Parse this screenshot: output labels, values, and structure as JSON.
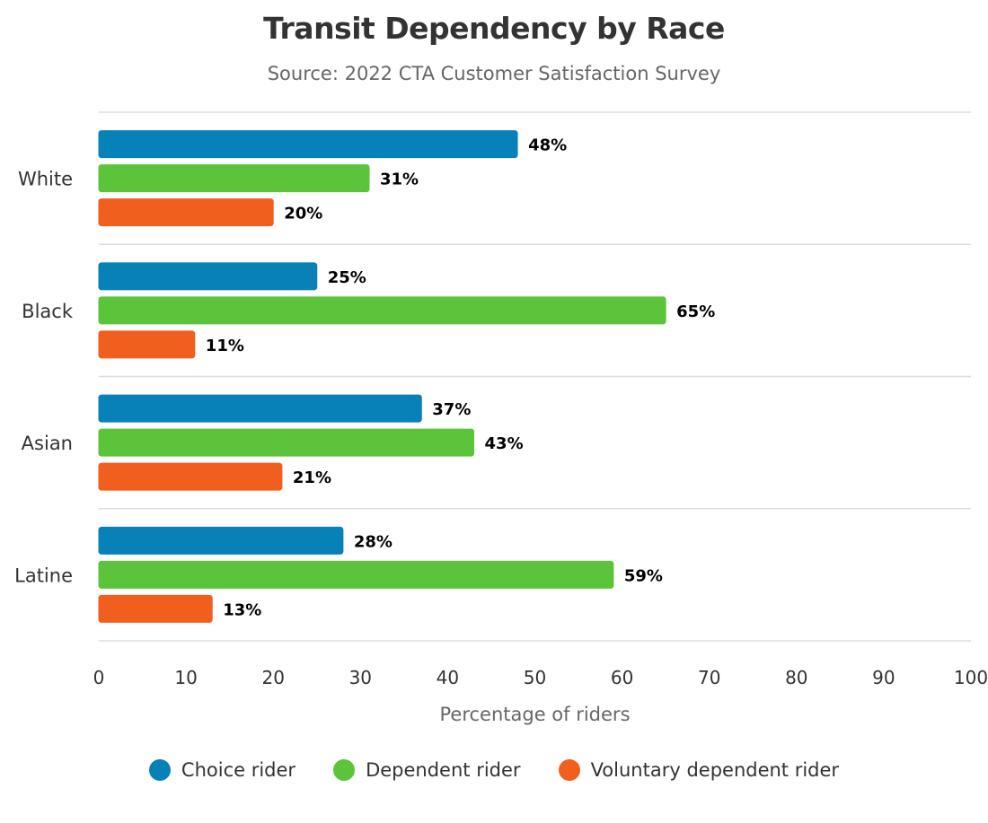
{
  "chart_data": {
    "type": "bar",
    "orientation": "horizontal",
    "title": "Transit Dependency by Race",
    "subtitle": "Source: 2022 CTA Customer Satisfaction Survey",
    "xlabel": "Percentage of riders",
    "ylabel": "",
    "xlim": [
      0,
      100
    ],
    "xticks": [
      "0",
      "10",
      "20",
      "30",
      "40",
      "50",
      "60",
      "70",
      "80",
      "90",
      "100"
    ],
    "categories": [
      "White",
      "Black",
      "Asian",
      "Latine"
    ],
    "series": [
      {
        "name": "Choice rider",
        "color": "#0880b8",
        "values": [
          48,
          25,
          37,
          28
        ],
        "labels": [
          "48%",
          "25%",
          "37%",
          "28%"
        ]
      },
      {
        "name": "Dependent rider",
        "color": "#5cc43a",
        "values": [
          31,
          65,
          43,
          59
        ],
        "labels": [
          "31%",
          "65%",
          "43%",
          "59%"
        ]
      },
      {
        "name": "Voluntary dependent rider",
        "color": "#f05f1e",
        "values": [
          20,
          11,
          21,
          13
        ],
        "labels": [
          "20%",
          "11%",
          "21%",
          "13%"
        ]
      }
    ],
    "grid": "category-separators",
    "legend": "bottom-center"
  }
}
